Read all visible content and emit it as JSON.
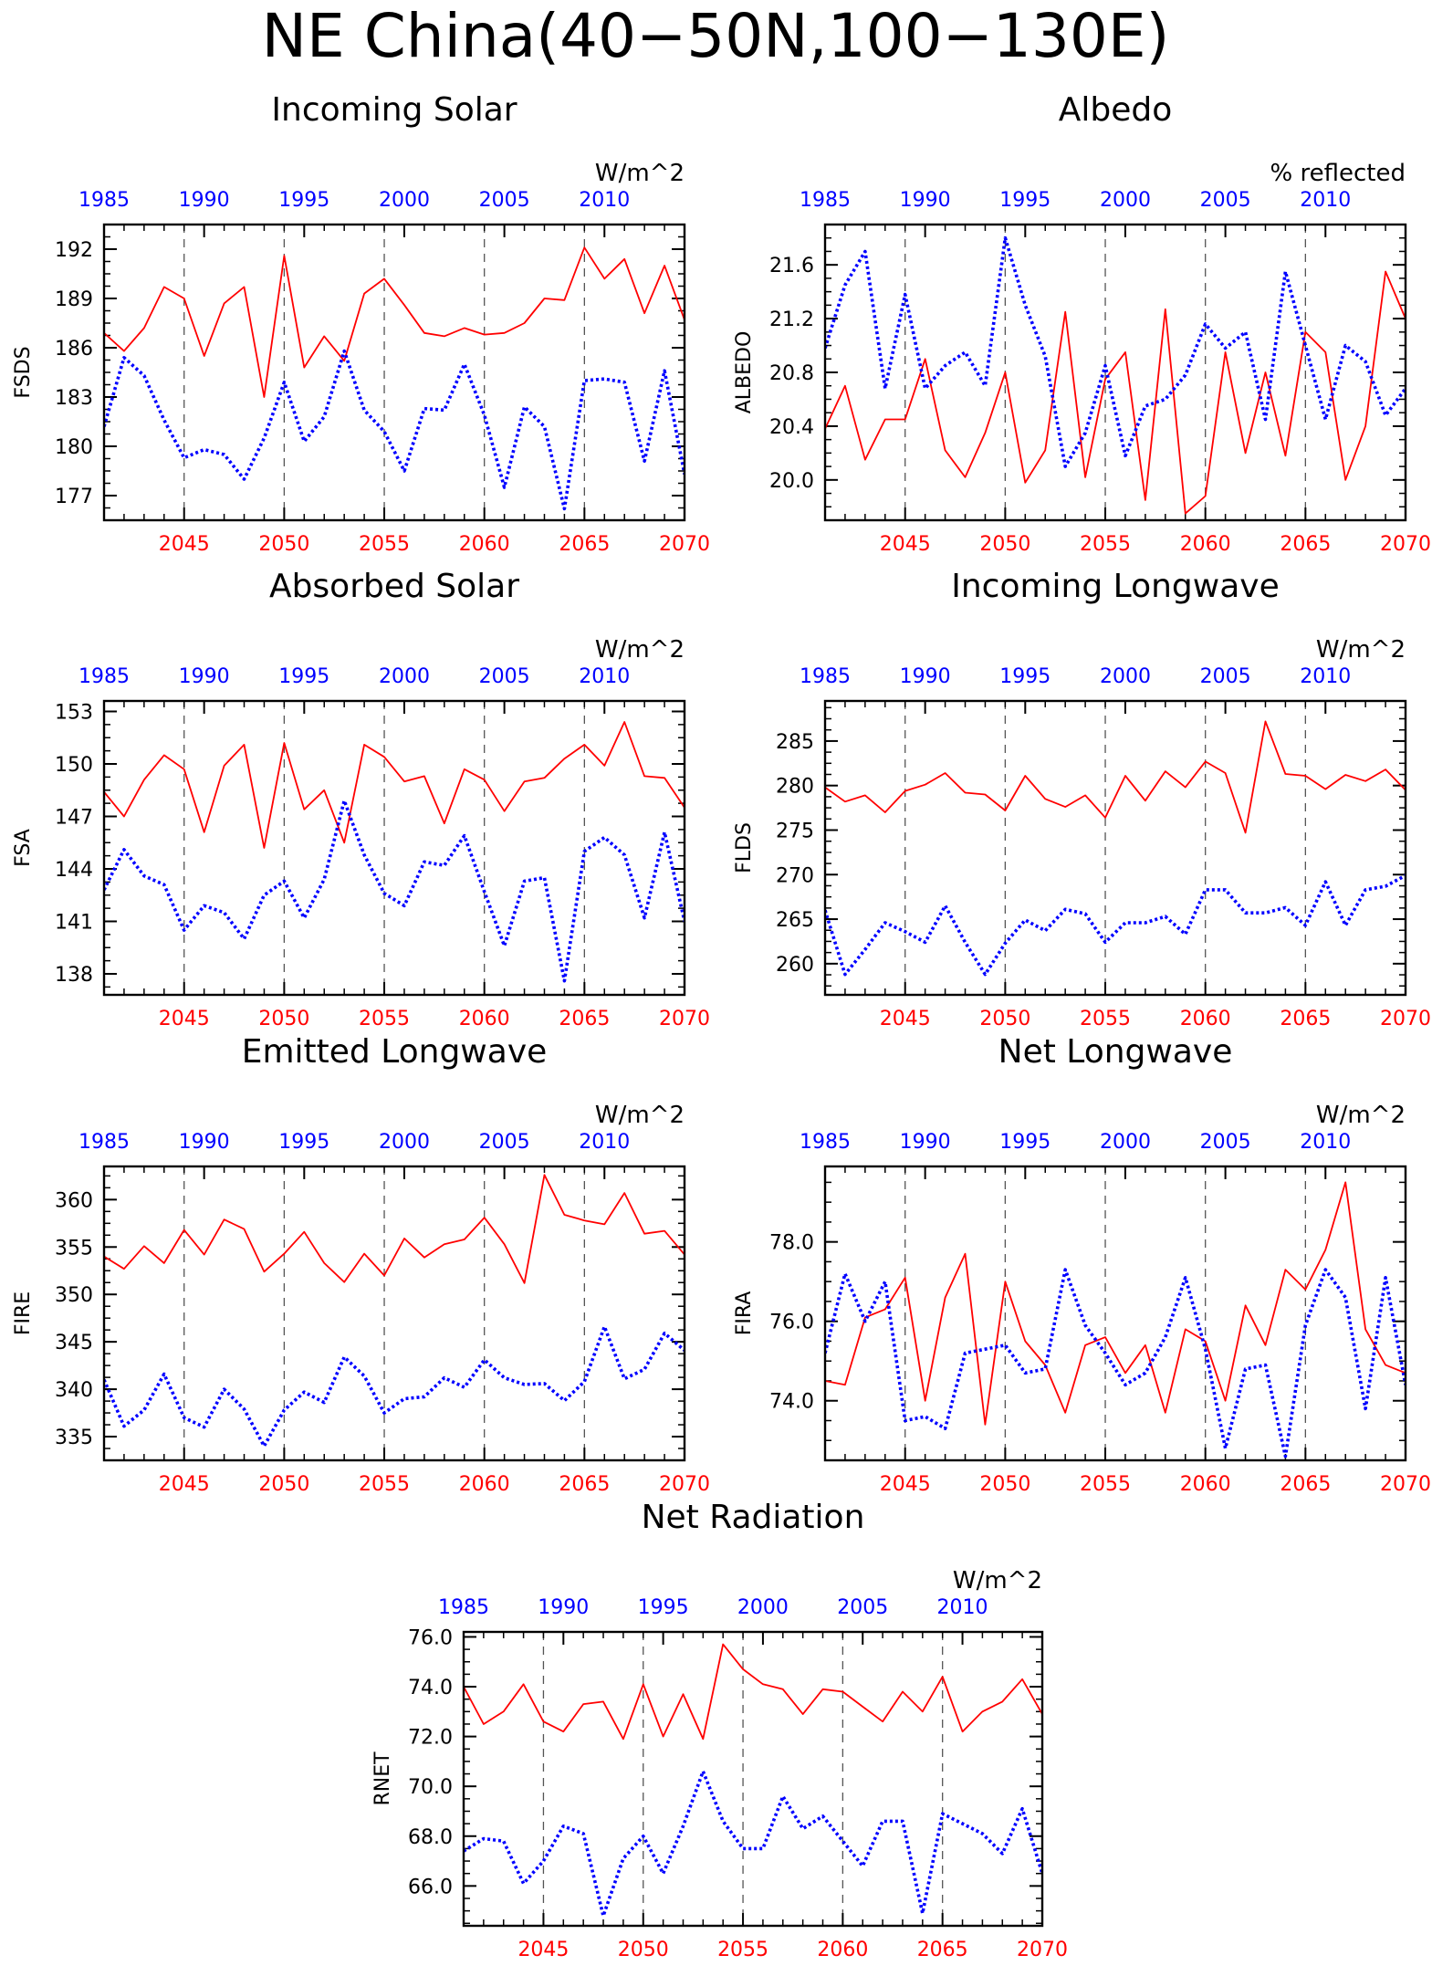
{
  "page_title": "NE China(40−50N,100−130E)",
  "colors": {
    "red": "#ff0000",
    "blue": "#0000ff",
    "axis": "#000000",
    "grid": "#555555"
  },
  "chart_data": [
    {
      "id": "incoming-solar",
      "type": "line",
      "title": "Incoming Solar",
      "units": "W/m^2",
      "ylabel": "FSDS",
      "top_axis": [
        1985,
        1990,
        1995,
        2000,
        2005,
        2010
      ],
      "bottom_axis": [
        2045,
        2050,
        2055,
        2060,
        2065,
        2070
      ],
      "yticks": [
        177,
        180,
        183,
        186,
        189,
        192
      ],
      "ylim": [
        175.5,
        193.5
      ],
      "series": [
        {
          "color": "red",
          "style": "solid",
          "x_range": [
            2041,
            2070
          ],
          "values": [
            186.9,
            185.8,
            187.2,
            189.7,
            189.0,
            185.5,
            188.7,
            189.7,
            183.0,
            191.6,
            184.8,
            186.7,
            185.2,
            189.3,
            190.2,
            188.6,
            186.9,
            186.7,
            187.2,
            186.8,
            186.9,
            187.5,
            189.0,
            188.9,
            192.1,
            190.2,
            191.4,
            188.1,
            191.0,
            187.7
          ]
        },
        {
          "color": "blue",
          "style": "dotted",
          "x_range": [
            1985,
            2014
          ],
          "values": [
            181.2,
            185.4,
            184.3,
            181.6,
            179.3,
            179.8,
            179.5,
            178.0,
            180.5,
            183.9,
            180.3,
            181.8,
            185.8,
            182.2,
            180.9,
            178.5,
            182.3,
            182.2,
            185.0,
            181.9,
            177.5,
            182.4,
            181.2,
            176.2,
            184.0,
            184.1,
            183.9,
            179.1,
            184.6,
            178.3
          ]
        }
      ]
    },
    {
      "id": "albedo",
      "type": "line",
      "title": "Albedo",
      "units": "% reflected",
      "ylabel": "ALBEDO",
      "top_axis": [
        1985,
        1990,
        1995,
        2000,
        2005,
        2010
      ],
      "bottom_axis": [
        2045,
        2050,
        2055,
        2060,
        2065,
        2070
      ],
      "yticks": [
        "20.0",
        "20.4",
        "20.8",
        "21.2",
        "21.6"
      ],
      "ylim": [
        19.7,
        21.9
      ],
      "series": [
        {
          "color": "red",
          "style": "solid",
          "x_range": [
            2041,
            2070
          ],
          "values": [
            20.38,
            20.7,
            20.15,
            20.45,
            20.45,
            20.9,
            20.22,
            20.02,
            20.35,
            20.8,
            19.98,
            20.22,
            21.25,
            20.02,
            20.75,
            20.95,
            19.85,
            21.27,
            19.75,
            19.88,
            20.95,
            20.2,
            20.8,
            20.18,
            21.1,
            20.95,
            20.0,
            20.4,
            21.55,
            21.2
          ]
        },
        {
          "color": "blue",
          "style": "dotted",
          "x_range": [
            1985,
            2014
          ],
          "values": [
            20.98,
            21.45,
            21.7,
            20.68,
            21.38,
            20.68,
            20.85,
            20.95,
            20.7,
            21.8,
            21.3,
            20.92,
            20.1,
            20.35,
            20.85,
            20.18,
            20.55,
            20.6,
            20.78,
            21.16,
            20.98,
            21.1,
            20.45,
            21.55,
            21.0,
            20.45,
            21.0,
            20.88,
            20.48,
            20.68
          ]
        }
      ]
    },
    {
      "id": "absorbed-solar",
      "type": "line",
      "title": "Absorbed Solar",
      "units": "W/m^2",
      "ylabel": "FSA",
      "top_axis": [
        1985,
        1990,
        1995,
        2000,
        2005,
        2010
      ],
      "bottom_axis": [
        2045,
        2050,
        2055,
        2060,
        2065,
        2070
      ],
      "yticks": [
        138,
        141,
        144,
        147,
        150,
        153
      ],
      "ylim": [
        136.8,
        153.6
      ],
      "series": [
        {
          "color": "red",
          "style": "solid",
          "x_range": [
            2041,
            2070
          ],
          "values": [
            148.4,
            147.0,
            149.1,
            150.5,
            149.7,
            146.1,
            149.9,
            151.1,
            145.2,
            151.2,
            147.4,
            148.5,
            145.5,
            151.1,
            150.4,
            149.0,
            149.3,
            146.6,
            149.7,
            149.1,
            147.3,
            149.0,
            149.2,
            150.3,
            151.1,
            149.9,
            152.4,
            149.3,
            149.2,
            147.5
          ]
        },
        {
          "color": "blue",
          "style": "dotted",
          "x_range": [
            1985,
            2014
          ],
          "values": [
            142.8,
            145.1,
            143.6,
            143.1,
            140.5,
            141.9,
            141.5,
            140.0,
            142.5,
            143.3,
            141.2,
            143.4,
            147.9,
            144.8,
            142.6,
            141.9,
            144.4,
            144.2,
            145.9,
            142.7,
            139.6,
            143.3,
            143.5,
            137.6,
            145.0,
            145.8,
            144.8,
            141.2,
            146.1,
            141.0
          ]
        }
      ]
    },
    {
      "id": "incoming-longwave",
      "type": "line",
      "title": "Incoming Longwave",
      "units": "W/m^2",
      "ylabel": "FLDS",
      "top_axis": [
        1985,
        1990,
        1995,
        2000,
        2005,
        2010
      ],
      "bottom_axis": [
        2045,
        2050,
        2055,
        2060,
        2065,
        2070
      ],
      "yticks": [
        260,
        265,
        270,
        275,
        280,
        285
      ],
      "ylim": [
        256.5,
        289.5
      ],
      "series": [
        {
          "color": "red",
          "style": "solid",
          "x_range": [
            2041,
            2070
          ],
          "values": [
            279.8,
            278.2,
            278.9,
            277.0,
            279.4,
            280.1,
            281.4,
            279.2,
            279.0,
            277.2,
            281.1,
            278.5,
            277.6,
            278.9,
            276.4,
            281.1,
            278.3,
            281.6,
            279.8,
            282.7,
            281.4,
            274.7,
            287.2,
            281.3,
            281.1,
            279.6,
            281.2,
            280.5,
            281.8,
            279.5
          ]
        },
        {
          "color": "blue",
          "style": "dotted",
          "x_range": [
            1985,
            2014
          ],
          "values": [
            266.0,
            258.8,
            261.6,
            264.6,
            263.6,
            262.4,
            266.5,
            262.4,
            258.8,
            262.3,
            264.9,
            263.7,
            266.1,
            265.6,
            262.4,
            264.6,
            264.6,
            265.3,
            263.3,
            268.3,
            268.3,
            265.7,
            265.7,
            266.3,
            264.3,
            269.2,
            264.3,
            268.3,
            268.7,
            269.9
          ]
        }
      ]
    },
    {
      "id": "emitted-longwave",
      "type": "line",
      "title": "Emitted Longwave",
      "units": "W/m^2",
      "ylabel": "FIRE",
      "top_axis": [
        1985,
        1990,
        1995,
        2000,
        2005,
        2010
      ],
      "bottom_axis": [
        2045,
        2050,
        2055,
        2060,
        2065,
        2070
      ],
      "yticks": [
        335,
        340,
        345,
        350,
        355,
        360
      ],
      "ylim": [
        332.5,
        363.5
      ],
      "series": [
        {
          "color": "red",
          "style": "solid",
          "x_range": [
            2041,
            2070
          ],
          "values": [
            354.0,
            352.7,
            355.1,
            353.3,
            356.8,
            354.2,
            357.9,
            356.9,
            352.4,
            354.3,
            356.6,
            353.3,
            351.3,
            354.3,
            352.0,
            355.9,
            353.9,
            355.3,
            355.8,
            358.1,
            355.3,
            351.2,
            362.6,
            358.4,
            357.8,
            357.4,
            360.7,
            356.4,
            356.7,
            354.2
          ]
        },
        {
          "color": "blue",
          "style": "dotted",
          "x_range": [
            1985,
            2014
          ],
          "values": [
            341.0,
            336.1,
            337.8,
            341.6,
            337.0,
            336.0,
            340.0,
            337.9,
            334.0,
            337.8,
            339.7,
            338.6,
            343.4,
            341.4,
            337.5,
            339.0,
            339.2,
            341.2,
            340.2,
            343.1,
            341.2,
            340.5,
            340.6,
            338.8,
            340.8,
            346.6,
            341.1,
            342.1,
            345.9,
            344.1
          ]
        }
      ]
    },
    {
      "id": "net-longwave",
      "type": "line",
      "title": "Net Longwave",
      "units": "W/m^2",
      "ylabel": "FIRA",
      "top_axis": [
        1985,
        1990,
        1995,
        2000,
        2005,
        2010
      ],
      "bottom_axis": [
        2045,
        2050,
        2055,
        2060,
        2065,
        2070
      ],
      "yticks": [
        "74.0",
        "76.0",
        "78.0"
      ],
      "ylim": [
        72.5,
        79.9
      ],
      "series": [
        {
          "color": "red",
          "style": "solid",
          "x_range": [
            2041,
            2070
          ],
          "values": [
            74.5,
            74.4,
            76.1,
            76.3,
            77.1,
            74.0,
            76.6,
            77.7,
            73.4,
            77.0,
            75.5,
            74.9,
            73.7,
            75.4,
            75.6,
            74.7,
            75.4,
            73.7,
            75.8,
            75.5,
            74.0,
            76.4,
            75.4,
            77.3,
            76.8,
            77.8,
            79.5,
            75.8,
            74.9,
            74.7
          ]
        },
        {
          "color": "blue",
          "style": "dotted",
          "x_range": [
            1985,
            2014
          ],
          "values": [
            75.2,
            77.2,
            76.0,
            77.0,
            73.5,
            73.6,
            73.3,
            75.2,
            75.3,
            75.4,
            74.7,
            74.8,
            77.3,
            75.9,
            75.2,
            74.4,
            74.7,
            75.6,
            77.1,
            75.3,
            72.8,
            74.8,
            74.9,
            72.6,
            75.9,
            77.3,
            76.6,
            73.8,
            77.1,
            74.4
          ]
        }
      ]
    },
    {
      "id": "net-radiation",
      "type": "line",
      "title": "Net Radiation",
      "units": "W/m^2",
      "ylabel": "RNET",
      "top_axis": [
        1985,
        1990,
        1995,
        2000,
        2005,
        2010
      ],
      "bottom_axis": [
        2045,
        2050,
        2055,
        2060,
        2065,
        2070
      ],
      "yticks": [
        "66.0",
        "68.0",
        "70.0",
        "72.0",
        "74.0",
        "76.0"
      ],
      "ylim": [
        64.4,
        76.2
      ],
      "series": [
        {
          "color": "red",
          "style": "solid",
          "x_range": [
            2041,
            2070
          ],
          "values": [
            74.0,
            72.5,
            73.0,
            74.1,
            72.6,
            72.2,
            73.3,
            73.4,
            71.9,
            74.1,
            72.0,
            73.7,
            71.9,
            75.7,
            74.7,
            74.1,
            73.9,
            72.9,
            73.9,
            73.8,
            73.2,
            72.6,
            73.8,
            73.0,
            74.4,
            72.2,
            73.0,
            73.4,
            74.3,
            72.9
          ]
        },
        {
          "color": "blue",
          "style": "dotted",
          "x_range": [
            1985,
            2014
          ],
          "values": [
            67.4,
            67.9,
            67.8,
            66.1,
            67.0,
            68.4,
            68.1,
            64.8,
            67.1,
            68.0,
            66.5,
            68.4,
            70.6,
            68.6,
            67.5,
            67.5,
            69.6,
            68.3,
            68.8,
            67.8,
            66.8,
            68.6,
            68.6,
            64.9,
            68.9,
            68.5,
            68.1,
            67.3,
            69.1,
            66.5
          ]
        }
      ]
    }
  ]
}
